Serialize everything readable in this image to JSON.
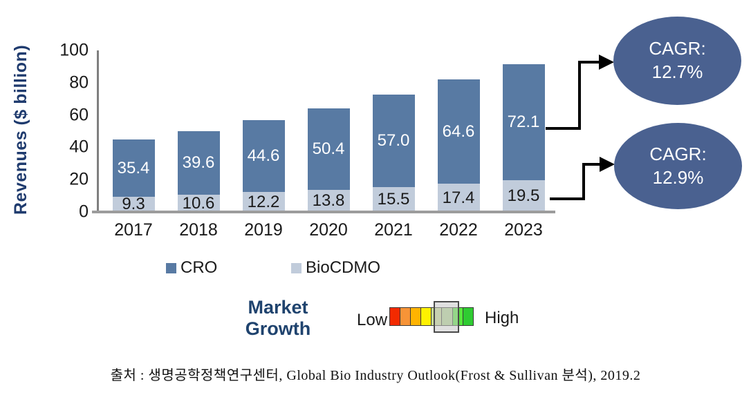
{
  "figure": {
    "y_axis_title": "Revenues ($ billion)",
    "legend": [
      {
        "label": "CRO",
        "color": "#587AA3"
      },
      {
        "label": "BioCDMO",
        "color": "#C1CCDB"
      }
    ],
    "cagr_badges": [
      {
        "line1": "CAGR:",
        "line2": "12.7%"
      },
      {
        "line1": "CAGR:",
        "line2": "12.9%"
      }
    ],
    "market_growth": {
      "label_line1": "Market",
      "label_line2": "Growth",
      "low_label": "Low",
      "high_label": "High",
      "scale_colors": [
        "#F32A00",
        "#F79437",
        "#FFB400",
        "#FFF100",
        "#C8DB97",
        "#B3D896",
        "#57E83C",
        "#2FCB32"
      ],
      "selected_boxes": [
        4,
        5
      ]
    },
    "source": "출처 : 생명공학정책연구센터, Global Bio Industry Outlook(Frost & Sullivan 분석), 2019.2"
  },
  "chart_data": {
    "type": "bar",
    "stacked": true,
    "title": "",
    "xlabel": "",
    "ylabel": "Revenues ($ billion)",
    "ylim": [
      0,
      100
    ],
    "yticks": [
      0,
      20,
      40,
      60,
      80,
      100
    ],
    "grid": false,
    "legend_position": "bottom",
    "categories": [
      "2017",
      "2018",
      "2019",
      "2020",
      "2021",
      "2022",
      "2023"
    ],
    "series": [
      {
        "name": "CRO",
        "color": "#587AA3",
        "label_color": "#FFFFFF",
        "values": [
          35.4,
          39.6,
          44.6,
          50.4,
          57.0,
          64.6,
          72.1
        ],
        "labels": [
          "35.4",
          "39.6",
          "44.6",
          "50.4",
          "57.0",
          "64.6",
          "72.1"
        ]
      },
      {
        "name": "BioCDMO",
        "color": "#C1CCDB",
        "label_color": "#1A1A1A",
        "values": [
          9.3,
          10.6,
          12.2,
          13.8,
          15.5,
          17.4,
          19.5
        ],
        "labels": [
          "9.3",
          "10.6",
          "12.2",
          "13.8",
          "15.5",
          "17.4",
          "19.5"
        ]
      }
    ],
    "annotations": [
      {
        "text": "CAGR: 12.7%",
        "applies_to": "CRO total trend"
      },
      {
        "text": "CAGR: 12.9%",
        "applies_to": "BioCDMO trend"
      }
    ]
  }
}
